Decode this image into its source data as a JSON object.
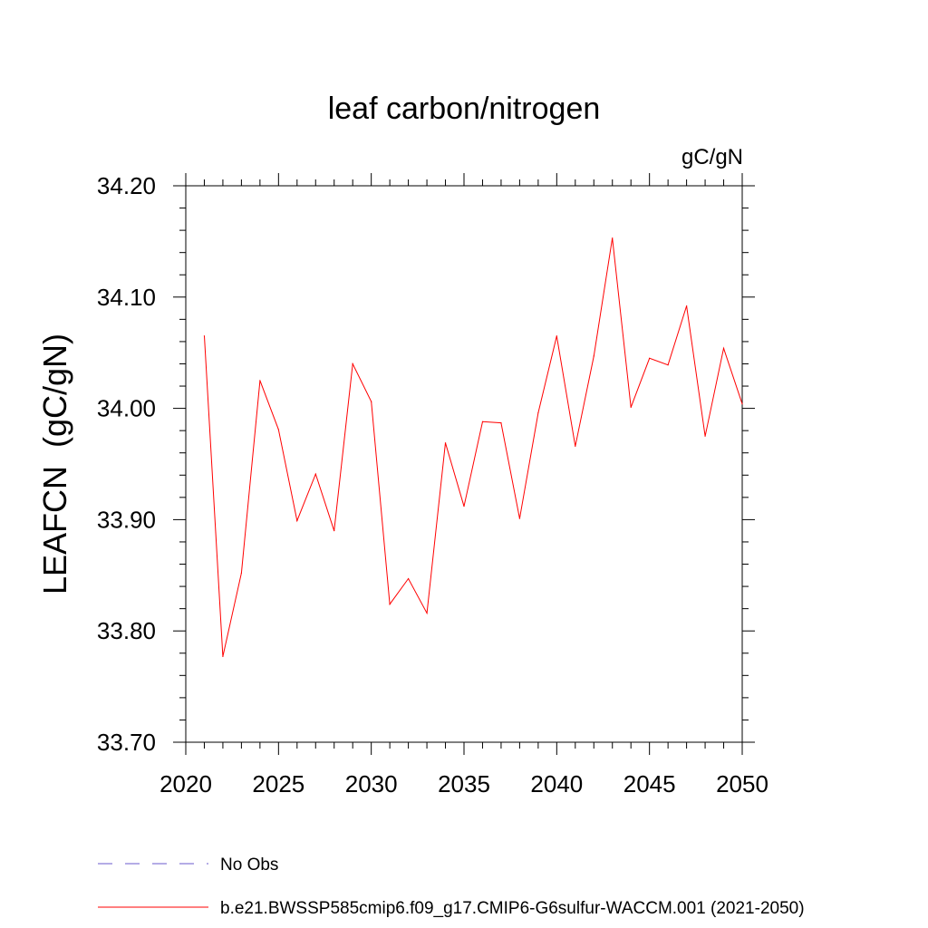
{
  "chart_data": {
    "type": "line",
    "title": "leaf carbon/nitrogen",
    "units_label": "gC/gN",
    "ylabel": "LEAFCN  (gC/gN)",
    "xlabel": "",
    "xlim": [
      2020,
      2050
    ],
    "ylim": [
      33.7,
      34.2
    ],
    "x_ticks": [
      2020,
      2025,
      2030,
      2035,
      2040,
      2045,
      2050
    ],
    "x_tick_labels": [
      "2020",
      "2025",
      "2030",
      "2035",
      "2040",
      "2045",
      "2050"
    ],
    "y_ticks": [
      33.7,
      33.8,
      33.9,
      34.0,
      34.1,
      34.2
    ],
    "y_tick_labels": [
      "33.70",
      "33.80",
      "33.90",
      "34.00",
      "34.10",
      "34.20"
    ],
    "grid": false,
    "legend_position": "bottom-left",
    "series": [
      {
        "name": "b.e21.BWSSP585cmip6.f09_g17.CMIP6-G6sulfur-WACCM.001 (2021-2050)",
        "color": "#ff0000",
        "line_style": "solid",
        "x": [
          2021,
          2022,
          2023,
          2024,
          2025,
          2026,
          2027,
          2028,
          2029,
          2030,
          2031,
          2032,
          2033,
          2034,
          2035,
          2036,
          2037,
          2038,
          2039,
          2040,
          2041,
          2042,
          2043,
          2044,
          2045,
          2046,
          2047,
          2048,
          2049,
          2050
        ],
        "values": [
          34.065,
          33.777,
          33.852,
          34.025,
          33.981,
          33.899,
          33.941,
          33.89,
          34.04,
          34.006,
          33.824,
          33.847,
          33.816,
          33.969,
          33.912,
          33.988,
          33.987,
          33.901,
          33.996,
          34.065,
          33.966,
          34.047,
          34.153,
          34.001,
          34.045,
          34.039,
          34.092,
          33.975,
          34.054,
          34.004
        ]
      }
    ],
    "legend_entries": [
      {
        "label": "No Obs",
        "color": "#6a5acd",
        "line_style": "dashed"
      },
      {
        "label": "b.e21.BWSSP585cmip6.f09_g17.CMIP6-G6sulfur-WACCM.001 (2021-2050)",
        "color": "#ff0000",
        "line_style": "solid"
      }
    ]
  }
}
